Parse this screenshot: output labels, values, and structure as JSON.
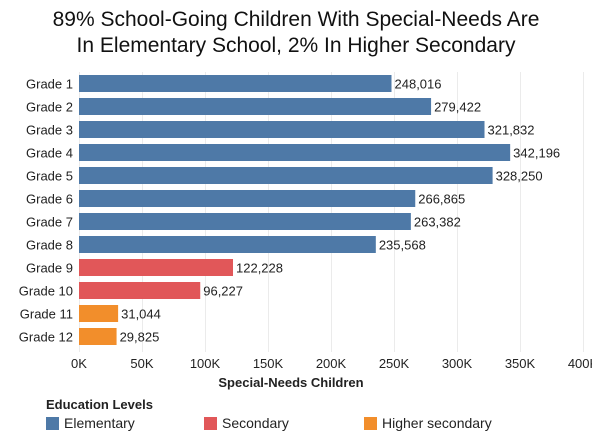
{
  "chart_data": {
    "type": "bar",
    "orientation": "horizontal",
    "title": [
      "89% School-Going Children With Special-Needs Are",
      "In Elementary School, 2% In Higher Secondary"
    ],
    "xlabel": "Special-Needs Children",
    "xlim": [
      0,
      400000
    ],
    "x_ticks": [
      0,
      50000,
      100000,
      150000,
      200000,
      250000,
      300000,
      350000,
      400000
    ],
    "x_tick_labels": [
      "0K",
      "50K",
      "100K",
      "150K",
      "200K",
      "250K",
      "300K",
      "350K",
      "400K"
    ],
    "grid": "vertical",
    "categories": [
      "Grade 1",
      "Grade 2",
      "Grade 3",
      "Grade 4",
      "Grade 5",
      "Grade 6",
      "Grade 7",
      "Grade 8",
      "Grade 9",
      "Grade 10",
      "Grade 11",
      "Grade 12"
    ],
    "values": [
      248016,
      279422,
      321832,
      342196,
      328250,
      266865,
      263382,
      235568,
      122228,
      96227,
      31044,
      29825
    ],
    "value_labels": [
      "248,016",
      "279,422",
      "321,832",
      "342,196",
      "328,250",
      "266,865",
      "263,382",
      "235,568",
      "122,228",
      "96,227",
      "31,044",
      "29,825"
    ],
    "bar_groups": [
      "Elementary",
      "Elementary",
      "Elementary",
      "Elementary",
      "Elementary",
      "Elementary",
      "Elementary",
      "Elementary",
      "Secondary",
      "Secondary",
      "Higher secondary",
      "Higher secondary"
    ],
    "legend": {
      "title": "Education Levels",
      "placement": "bottom-left",
      "items": [
        {
          "name": "Elementary",
          "color": "#4e79a7"
        },
        {
          "name": "Secondary",
          "color": "#e15759"
        },
        {
          "name": "Higher secondary",
          "color": "#f28e2b"
        }
      ]
    }
  }
}
